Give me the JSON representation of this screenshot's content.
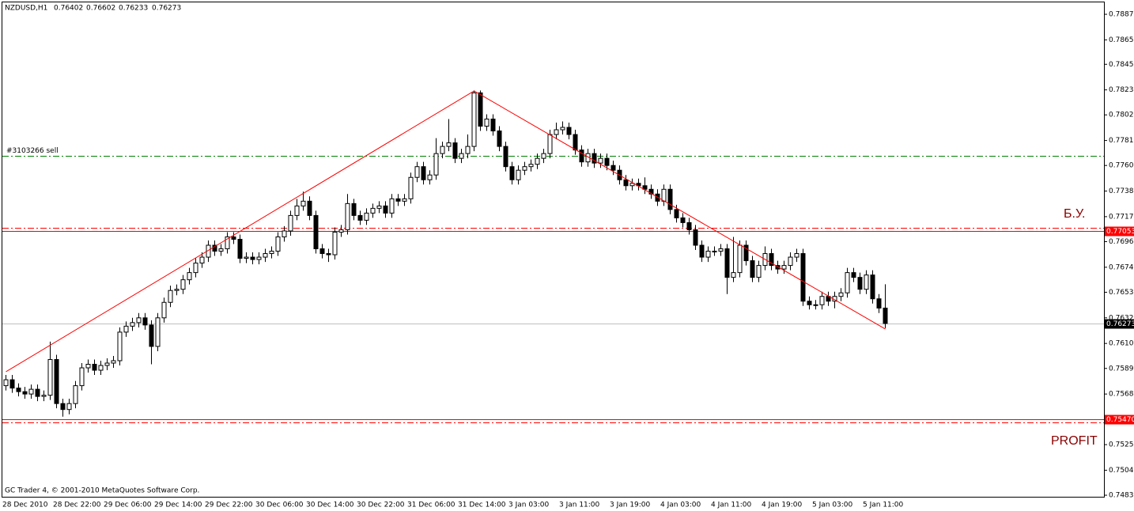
{
  "chart_data": {
    "type": "candlestick",
    "symbol": "NZDUSD,H1",
    "footer": "GC Trader 4, © 2001-2010 MetaQuotes Software Corp.",
    "annotations": [
      "Б.У.",
      "PROFIT"
    ],
    "up_color": "#ffffff",
    "down_color": "#000000",
    "edge_color": "#000000",
    "ylim": [
      0.74817,
      0.7899
    ],
    "yticks": [
      {
        "value": 0.7887,
        "label": "0.78870"
      },
      {
        "value": 0.78655,
        "label": "0.78655"
      },
      {
        "value": 0.7845,
        "label": "0.78450"
      },
      {
        "value": 0.78235,
        "label": "0.78235"
      },
      {
        "value": 0.78025,
        "label": "0.78025"
      },
      {
        "value": 0.7781,
        "label": "0.77810"
      },
      {
        "value": 0.776,
        "label": "0.77600"
      },
      {
        "value": 0.77385,
        "label": "0.77385"
      },
      {
        "value": 0.7717,
        "label": "0.77170"
      },
      {
        "value": 0.7696,
        "label": "0.76960"
      },
      {
        "value": 0.76745,
        "label": "0.76745"
      },
      {
        "value": 0.76535,
        "label": "0.76535"
      },
      {
        "value": 0.7632,
        "label": "0.76320"
      },
      {
        "value": 0.76105,
        "label": "0.76105"
      },
      {
        "value": 0.75895,
        "label": "0.75895"
      },
      {
        "value": 0.7568,
        "label": "0.75680"
      },
      {
        "value": 0.7547,
        "label": "0.75470"
      },
      {
        "value": 0.75255,
        "label": "0.75255"
      },
      {
        "value": 0.7504,
        "label": "0.75040"
      },
      {
        "value": 0.7483,
        "label": "0.74830"
      }
    ],
    "categories": [
      "28 Dec 2010",
      null,
      null,
      null,
      null,
      null,
      null,
      null,
      "28 Dec 22:00",
      null,
      null,
      null,
      null,
      null,
      null,
      null,
      "29 Dec 06:00",
      null,
      null,
      null,
      null,
      null,
      null,
      null,
      "29 Dec 14:00",
      null,
      null,
      null,
      null,
      null,
      null,
      null,
      "29 Dec 22:00",
      null,
      null,
      null,
      null,
      null,
      null,
      null,
      "30 Dec 06:00",
      null,
      null,
      null,
      null,
      null,
      null,
      null,
      "30 Dec 14:00",
      null,
      null,
      null,
      null,
      null,
      null,
      null,
      "30 Dec 22:00",
      null,
      null,
      null,
      null,
      null,
      null,
      null,
      "31 Dec 06:00",
      null,
      null,
      null,
      null,
      null,
      null,
      null,
      "31 Dec 14:00",
      null,
      null,
      null,
      null,
      null,
      null,
      null,
      "3 Jan 03:00",
      null,
      null,
      null,
      null,
      null,
      null,
      null,
      "3 Jan 11:00",
      null,
      null,
      null,
      null,
      null,
      null,
      null,
      "3 Jan 19:00",
      null,
      null,
      null,
      null,
      null,
      null,
      null,
      "4 Jan 03:00",
      null,
      null,
      null,
      null,
      null,
      null,
      null,
      "4 Jan 11:00",
      null,
      null,
      null,
      null,
      null,
      null,
      null,
      "4 Jan 19:00",
      null,
      null,
      null,
      null,
      null,
      null,
      null,
      "5 Jan 03:00",
      null,
      null,
      null,
      null,
      null,
      null,
      null,
      "5 Jan 11:00",
      null,
      null,
      null
    ],
    "open": [
      0.7575,
      0.758,
      0.7573,
      0.757,
      0.7568,
      0.7572,
      0.7566,
      0.7567,
      0.7597,
      0.756,
      0.7555,
      0.756,
      0.7575,
      0.759,
      0.7593,
      0.7588,
      0.7592,
      0.7594,
      0.7596,
      0.762,
      0.7625,
      0.7628,
      0.7632,
      0.7626,
      0.7608,
      0.7632,
      0.7645,
      0.7655,
      0.7656,
      0.7664,
      0.767,
      0.7678,
      0.7683,
      0.7693,
      0.7688,
      0.769,
      0.77,
      0.7698,
      0.7682,
      0.7683,
      0.7681,
      0.7683,
      0.7686,
      0.7688,
      0.77,
      0.7705,
      0.7718,
      0.7726,
      0.773,
      0.7718,
      0.769,
      0.7686,
      0.7685,
      0.7704,
      0.7706,
      0.7728,
      0.7718,
      0.7714,
      0.772,
      0.7724,
      0.7726,
      0.772,
      0.7732,
      0.773,
      0.7732,
      0.775,
      0.7759,
      0.7748,
      0.7752,
      0.777,
      0.7776,
      0.7779,
      0.7766,
      0.777,
      0.7776,
      0.7821,
      0.7793,
      0.7799,
      0.7789,
      0.7776,
      0.7759,
      0.7748,
      0.7756,
      0.7759,
      0.7761,
      0.7766,
      0.777,
      0.7786,
      0.779,
      0.7792,
      0.7786,
      0.7773,
      0.7763,
      0.777,
      0.7762,
      0.7766,
      0.776,
      0.7756,
      0.7748,
      0.7743,
      0.7745,
      0.7743,
      0.774,
      0.7736,
      0.773,
      0.774,
      0.7723,
      0.7716,
      0.7712,
      0.7706,
      0.7693,
      0.7683,
      0.7688,
      0.7688,
      0.769,
      0.7666,
      0.767,
      0.7693,
      0.768,
      0.7666,
      0.7676,
      0.7686,
      0.7676,
      0.7673,
      0.7676,
      0.7683,
      0.7686,
      0.7646,
      0.7643,
      0.7643,
      0.765,
      0.7646,
      0.765,
      0.7653,
      0.767,
      0.7666,
      0.7656,
      0.7668,
      0.7648,
      0.76402
    ],
    "high": [
      0.7584,
      0.7584,
      0.7577,
      0.7574,
      0.7576,
      0.7576,
      0.7571,
      0.7612,
      0.7601,
      0.7564,
      0.7564,
      0.7579,
      0.7594,
      0.7597,
      0.7597,
      0.7596,
      0.7598,
      0.76,
      0.7624,
      0.7629,
      0.7632,
      0.7636,
      0.7636,
      0.763,
      0.7636,
      0.7649,
      0.7659,
      0.766,
      0.7668,
      0.7674,
      0.7682,
      0.7687,
      0.7697,
      0.7697,
      0.7694,
      0.7704,
      0.7704,
      0.7702,
      0.7687,
      0.7687,
      0.7687,
      0.769,
      0.7692,
      0.7704,
      0.7709,
      0.7722,
      0.7732,
      0.7738,
      0.7734,
      0.7722,
      0.7694,
      0.769,
      0.7708,
      0.771,
      0.7736,
      0.7732,
      0.7722,
      0.7724,
      0.7728,
      0.773,
      0.773,
      0.7736,
      0.7736,
      0.7736,
      0.7754,
      0.7763,
      0.7763,
      0.7756,
      0.7783,
      0.778,
      0.7799,
      0.7783,
      0.7774,
      0.7786,
      0.7823,
      0.7823,
      0.7803,
      0.7803,
      0.7793,
      0.778,
      0.7763,
      0.776,
      0.7763,
      0.7765,
      0.777,
      0.7774,
      0.779,
      0.7796,
      0.7797,
      0.7796,
      0.779,
      0.7777,
      0.7774,
      0.7774,
      0.777,
      0.777,
      0.7764,
      0.776,
      0.7752,
      0.7749,
      0.7749,
      0.775,
      0.7744,
      0.774,
      0.7744,
      0.7744,
      0.7727,
      0.772,
      0.7716,
      0.771,
      0.7697,
      0.7692,
      0.7692,
      0.7694,
      0.7694,
      0.77,
      0.7697,
      0.7697,
      0.7684,
      0.768,
      0.7692,
      0.769,
      0.768,
      0.768,
      0.7687,
      0.769,
      0.769,
      0.765,
      0.7647,
      0.7654,
      0.7654,
      0.7654,
      0.7657,
      0.7674,
      0.7674,
      0.767,
      0.7672,
      0.7672,
      0.7652,
      0.76602
    ],
    "low": [
      0.7571,
      0.7569,
      0.7566,
      0.7564,
      0.7564,
      0.7562,
      0.7562,
      0.7563,
      0.7556,
      0.7549,
      0.7551,
      0.7556,
      0.7571,
      0.7586,
      0.7584,
      0.7584,
      0.7588,
      0.759,
      0.7592,
      0.7616,
      0.7621,
      0.7624,
      0.7622,
      0.7593,
      0.7604,
      0.7628,
      0.7641,
      0.7651,
      0.7652,
      0.766,
      0.7666,
      0.7674,
      0.7679,
      0.7684,
      0.7684,
      0.7686,
      0.7694,
      0.7678,
      0.7678,
      0.7677,
      0.7677,
      0.7679,
      0.7682,
      0.7684,
      0.7696,
      0.7701,
      0.7714,
      0.7722,
      0.7714,
      0.7686,
      0.7682,
      0.7679,
      0.7681,
      0.77,
      0.7702,
      0.7714,
      0.771,
      0.771,
      0.7716,
      0.772,
      0.7716,
      0.7716,
      0.7726,
      0.7726,
      0.7728,
      0.7746,
      0.7744,
      0.7744,
      0.7748,
      0.7766,
      0.7772,
      0.7762,
      0.7762,
      0.7766,
      0.7772,
      0.7789,
      0.7789,
      0.7785,
      0.7772,
      0.7755,
      0.7744,
      0.7744,
      0.7752,
      0.7755,
      0.7757,
      0.7762,
      0.7766,
      0.7782,
      0.7786,
      0.7782,
      0.7769,
      0.7759,
      0.7759,
      0.7758,
      0.7758,
      0.7756,
      0.7752,
      0.7744,
      0.7739,
      0.7739,
      0.7739,
      0.7736,
      0.7732,
      0.7726,
      0.7726,
      0.7719,
      0.7712,
      0.7708,
      0.7702,
      0.7689,
      0.7679,
      0.7679,
      0.7684,
      0.7684,
      0.7652,
      0.7662,
      0.7666,
      0.7676,
      0.7662,
      0.7662,
      0.7672,
      0.7672,
      0.7669,
      0.7669,
      0.7672,
      0.7679,
      0.7642,
      0.7639,
      0.7639,
      0.7639,
      0.7642,
      0.764,
      0.7646,
      0.7649,
      0.7662,
      0.7652,
      0.7652,
      0.7644,
      0.7636,
      0.76233
    ],
    "close": [
      0.758,
      0.7573,
      0.757,
      0.7568,
      0.7572,
      0.7566,
      0.7567,
      0.7597,
      0.756,
      0.7555,
      0.756,
      0.7575,
      0.759,
      0.7593,
      0.7588,
      0.7592,
      0.7594,
      0.7596,
      0.762,
      0.7625,
      0.7628,
      0.7632,
      0.7626,
      0.7608,
      0.7632,
      0.7645,
      0.7655,
      0.7656,
      0.7664,
      0.767,
      0.7678,
      0.7683,
      0.7693,
      0.7688,
      0.769,
      0.77,
      0.7698,
      0.7682,
      0.7683,
      0.7681,
      0.7683,
      0.7686,
      0.7688,
      0.77,
      0.7705,
      0.7718,
      0.7726,
      0.773,
      0.7718,
      0.769,
      0.7686,
      0.7685,
      0.7704,
      0.7706,
      0.7728,
      0.7718,
      0.7714,
      0.772,
      0.7724,
      0.7726,
      0.772,
      0.7732,
      0.773,
      0.7732,
      0.775,
      0.7759,
      0.7748,
      0.7752,
      0.777,
      0.7776,
      0.7779,
      0.7766,
      0.777,
      0.7776,
      0.7821,
      0.7793,
      0.7799,
      0.7789,
      0.7776,
      0.7759,
      0.7748,
      0.7756,
      0.7759,
      0.7761,
      0.7766,
      0.777,
      0.7786,
      0.779,
      0.7792,
      0.7786,
      0.7773,
      0.7763,
      0.777,
      0.7762,
      0.7766,
      0.776,
      0.7756,
      0.7748,
      0.7743,
      0.7745,
      0.7743,
      0.774,
      0.7736,
      0.773,
      0.774,
      0.7723,
      0.7716,
      0.7712,
      0.7706,
      0.7693,
      0.7683,
      0.7688,
      0.7688,
      0.769,
      0.7666,
      0.767,
      0.7693,
      0.768,
      0.7666,
      0.7676,
      0.7686,
      0.7676,
      0.7673,
      0.7676,
      0.7683,
      0.7686,
      0.7646,
      0.7643,
      0.7643,
      0.765,
      0.7646,
      0.765,
      0.7653,
      0.767,
      0.7666,
      0.7656,
      0.7668,
      0.7648,
      0.76402,
      0.76273
    ],
    "levels": [
      {
        "text": "#3103266 sell",
        "value": 0.77681,
        "color": "#008000",
        "style": "dashdot"
      },
      {
        "value": 0.77075,
        "color": "#ff0000",
        "style": "dashdot"
      },
      {
        "value": 0.77053,
        "color": "#ff0000",
        "style": "solid",
        "price_tag": true
      },
      {
        "value": 0.7547,
        "tag_label": "0.75470",
        "color": "#ff0000",
        "style": "solid",
        "price_tag": true
      },
      {
        "value": 0.7544,
        "color": "#ff0000",
        "style": "dashdot"
      }
    ],
    "current_line_color": "#c0c0c0",
    "trendline": {
      "x": [
        0,
        74,
        139
      ],
      "values": [
        0.75867,
        0.78226,
        0.76226
      ],
      "color": "#ff0000"
    }
  }
}
